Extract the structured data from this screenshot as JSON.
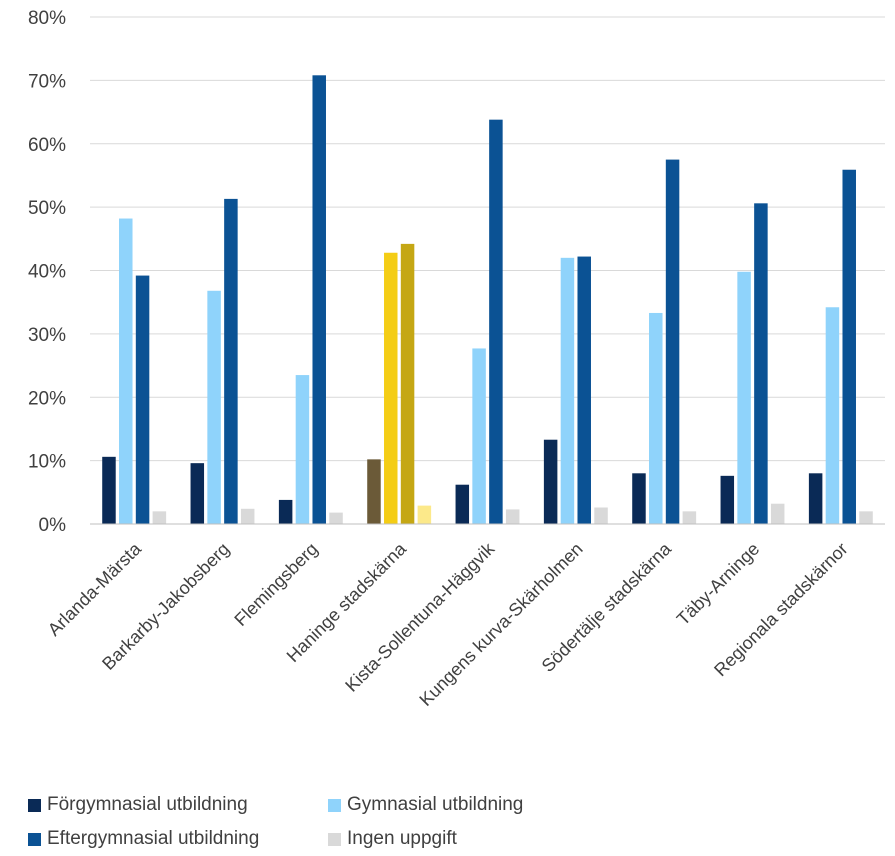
{
  "chart_data": {
    "type": "bar",
    "categories": [
      "Arlanda-Märsta",
      "Barkarby-Jakobsberg",
      "Flemingsberg",
      "Haninge stadskärna",
      "Kista-Sollentuna-Häggvik",
      "Kungens kurva-Skärholmen",
      "Södertälje stadskärna",
      "Täby-Arninge",
      "Regionala stadskärnor"
    ],
    "series": [
      {
        "name": "Förgymnasial utbildning",
        "color": "#0a2a56",
        "values": [
          10.6,
          9.6,
          3.8,
          10.2,
          6.2,
          13.3,
          8.0,
          7.6,
          8.0
        ]
      },
      {
        "name": "Gymnasial utbildning",
        "color": "#8fd3fb",
        "values": [
          48.2,
          36.8,
          23.5,
          42.8,
          27.7,
          42.0,
          33.3,
          39.8,
          34.2
        ]
      },
      {
        "name": "Eftergymnasial utbildning",
        "color": "#0b5294",
        "values": [
          39.2,
          51.3,
          70.8,
          44.2,
          63.8,
          42.2,
          57.5,
          50.6,
          55.9
        ]
      },
      {
        "name": "Ingen uppgift",
        "color": "#d9d9d9",
        "values": [
          2.0,
          2.4,
          1.8,
          2.9,
          2.3,
          2.6,
          2.0,
          3.2,
          2.0
        ]
      }
    ],
    "highlight": {
      "category": "Haninge stadskärna",
      "colors": [
        "#6b5a38",
        "#f4cd16",
        "#c5a714",
        "#fce98a"
      ]
    },
    "yticks": [
      "0%",
      "10%",
      "20%",
      "30%",
      "40%",
      "50%",
      "60%",
      "70%",
      "80%"
    ],
    "ylim": [
      0,
      80
    ],
    "grid": true,
    "legend_position": "bottom"
  }
}
